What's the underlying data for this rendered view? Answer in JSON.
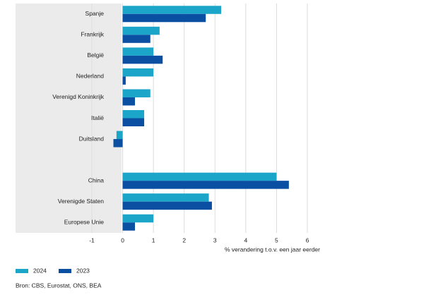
{
  "chart_data": {
    "type": "hbar",
    "categories": [
      "Spanje",
      "Frankrijk",
      "België",
      "Nederland",
      "Verenigd Koninkrijk",
      "Italië",
      "Duitsland",
      null,
      "China",
      "Verenigde Staten",
      "Europese Unie"
    ],
    "series": [
      {
        "name": "2024",
        "color": "#1ba6c9",
        "values": [
          3.2,
          1.2,
          1.0,
          1.0,
          0.9,
          0.7,
          -0.2,
          null,
          5.0,
          2.8,
          1.0
        ]
      },
      {
        "name": "2023",
        "color": "#0b4fa3",
        "values": [
          2.7,
          0.9,
          1.3,
          0.1,
          0.4,
          0.7,
          -0.3,
          null,
          5.4,
          2.9,
          0.4
        ]
      }
    ],
    "xlim": [
      -1,
      6
    ],
    "xticks": [
      -1,
      0,
      1,
      2,
      3,
      4,
      5,
      6
    ],
    "x_label": "% verandering t.o.v. een jaar eerder",
    "grid": true,
    "legend": "bottom-left",
    "source": "Bron: CBS, Eurostat, ONS, BEA"
  }
}
